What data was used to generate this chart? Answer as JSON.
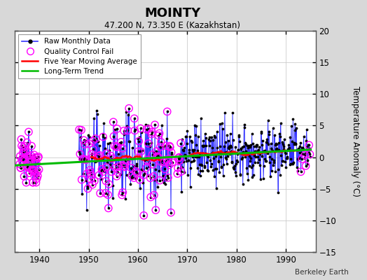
{
  "title": "MOINTY",
  "subtitle": "47.200 N, 73.350 E (Kazakhstan)",
  "ylabel": "Temperature Anomaly (°C)",
  "credit": "Berkeley Earth",
  "xlim": [
    1935,
    1996
  ],
  "ylim": [
    -15,
    20
  ],
  "yticks": [
    -15,
    -10,
    -5,
    0,
    5,
    10,
    15,
    20
  ],
  "xticks": [
    1940,
    1950,
    1960,
    1970,
    1980,
    1990
  ],
  "bg_color": "#d8d8d8",
  "plot_bg_color": "#ffffff",
  "raw_line_color": "#3333ff",
  "raw_dot_color": "#000000",
  "qc_fail_color": "#ff00ff",
  "moving_avg_color": "#ff0000",
  "trend_color": "#00bb00",
  "trend_x": [
    1935,
    1995
  ],
  "trend_y": [
    -1.3,
    1.2
  ],
  "figsize": [
    5.24,
    4.0
  ],
  "dpi": 100
}
